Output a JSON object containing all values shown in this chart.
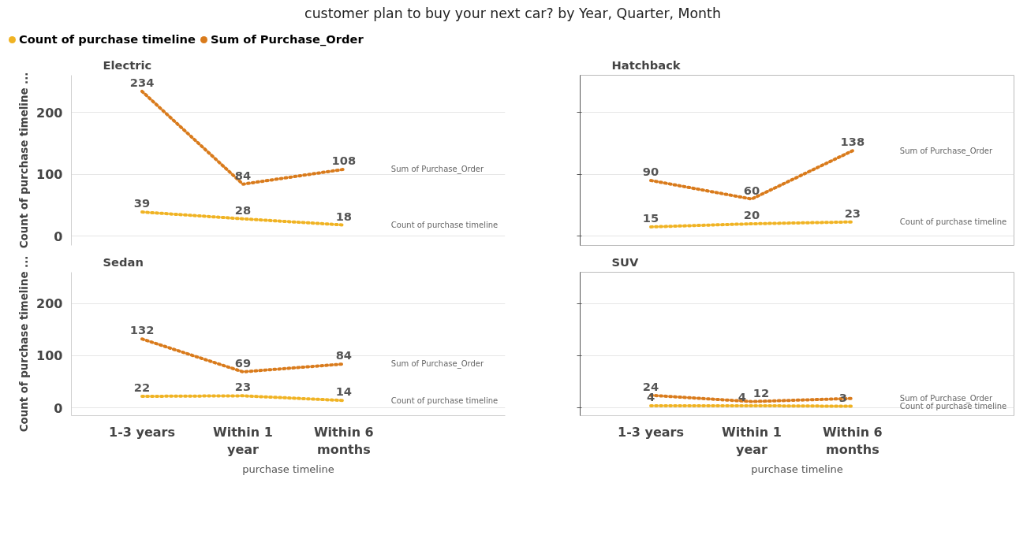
{
  "chart_data": [
    {
      "type": "line",
      "title": "customer plan to buy your next car? by Year, Quarter, Month",
      "subtitle": "Electric",
      "ylabel": "Count of purchase timeline ...",
      "categories": [
        "1-3 years",
        "Within 1 year",
        "Within 6 months"
      ],
      "ylim": [
        -15,
        260
      ],
      "yticks": [
        0,
        100,
        200
      ],
      "grid": "y",
      "legend": "top left",
      "tick_labels": "y",
      "line_style": "dotted",
      "marker": "none",
      "data_labels": true,
      "series": [
        {
          "name": "Count of purchase timeline",
          "color": "#f0b323",
          "values": [
            39,
            28,
            18
          ]
        },
        {
          "name": "Sum of Purchase_Order",
          "color": "#d97b1c",
          "values": [
            234,
            84,
            108
          ]
        }
      ]
    },
    {
      "type": "line",
      "subtitle": "Hatchback",
      "categories": [
        "1-3 years",
        "Within 1 year",
        "Within 6 months"
      ],
      "ylim": [
        -15,
        260
      ],
      "yticks": [
        0,
        100,
        200
      ],
      "grid": "y",
      "tick_labels": false,
      "line_style": "dotted",
      "marker": "none",
      "data_labels": true,
      "series": [
        {
          "name": "Count of purchase timeline",
          "color": "#f0b323",
          "values": [
            15,
            20,
            23
          ]
        },
        {
          "name": "Sum of Purchase_Order",
          "color": "#d97b1c",
          "values": [
            90,
            60,
            138
          ]
        }
      ]
    },
    {
      "type": "line",
      "subtitle": "Sedan",
      "ylabel": "Count of purchase timeline ...",
      "xlabel": "purchase timeline",
      "categories": [
        "1-3 years",
        "Within 1 year",
        "Within 6 months"
      ],
      "ylim": [
        -15,
        260
      ],
      "yticks": [
        0,
        100,
        200
      ],
      "grid": "y",
      "line_style": "dotted",
      "marker": "none",
      "data_labels": true,
      "series": [
        {
          "name": "Count of purchase timeline",
          "color": "#f0b323",
          "values": [
            22,
            23,
            14
          ]
        },
        {
          "name": "Sum of Purchase_Order",
          "color": "#d97b1c",
          "values": [
            132,
            69,
            84
          ]
        }
      ]
    },
    {
      "type": "line",
      "subtitle": "SUV",
      "xlabel": "purchase timeline",
      "categories": [
        "1-3 years",
        "Within 1 year",
        "Within 6 months"
      ],
      "ylim": [
        -15,
        260
      ],
      "yticks": [
        0,
        100,
        200
      ],
      "grid": "y",
      "tick_labels": "x",
      "line_style": "dotted",
      "marker": "none",
      "series": [
        {
          "name": "Count of purchase timeline",
          "color": "#f0b323",
          "values": [
            4,
            4,
            3
          ],
          "value_labels": [
            "4",
            "4",
            "3"
          ]
        },
        {
          "name": "Sum of Purchase_Order",
          "color": "#d97b1c",
          "values": [
            24,
            12,
            18
          ],
          "value_labels": [
            "24",
            "12",
            null
          ]
        }
      ]
    }
  ]
}
